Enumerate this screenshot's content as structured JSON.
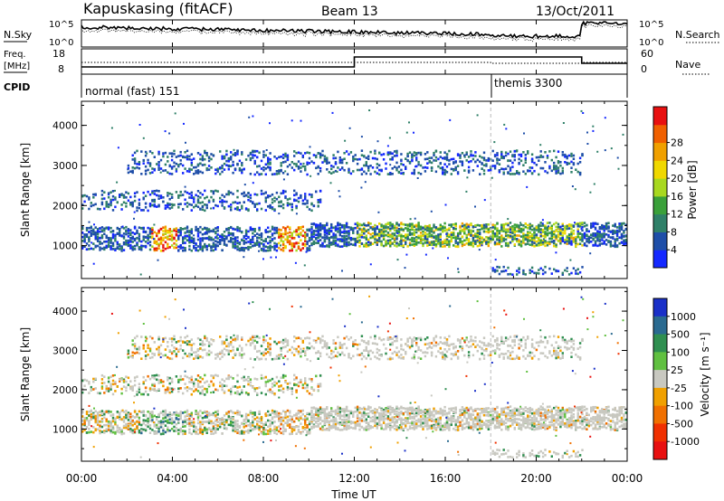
{
  "header": {
    "station": "Kapuskasing (fitACF)",
    "beam": "Beam 13",
    "date": "13/Oct/2011"
  },
  "strips": {
    "nsky": {
      "left_label": "N.Sky",
      "right_label": "N.Search",
      "left_ticks": [
        "10^5",
        "10^0"
      ],
      "right_ticks": [
        "10^5",
        "10^0"
      ]
    },
    "freq": {
      "left_label_1": "Freq.",
      "left_label_2": "[MHz]",
      "right_label": "Nave",
      "left_ticks": [
        "18",
        "8"
      ],
      "right_ticks": [
        "60",
        "0"
      ]
    },
    "cpid": {
      "label": "CPID",
      "modes": [
        {
          "name": "normal (fast) 151",
          "start_hour": 0,
          "end_hour": 18
        },
        {
          "name": "themis 3300",
          "start_hour": 18,
          "end_hour": 24
        }
      ]
    }
  },
  "chart_data": [
    {
      "type": "heatmap",
      "panel": "power",
      "ylabel": "Slant Range [km]",
      "xlabel": "Time UT",
      "x_ticks": [
        "00:00",
        "04:00",
        "08:00",
        "12:00",
        "16:00",
        "20:00",
        "00:00"
      ],
      "xlim_hours": [
        0,
        24
      ],
      "ylim_km": [
        180,
        4600
      ],
      "y_ticks": [
        1000,
        2000,
        3000,
        4000
      ],
      "colorbar_label": "Power [dB]",
      "colorbar_ticks": [
        "4",
        "8",
        "12",
        "16",
        "20",
        "24",
        "28"
      ],
      "colorbar_colors": [
        "#1428ff",
        "#1e4ea8",
        "#2f8068",
        "#3aa03a",
        "#a8d820",
        "#f0d800",
        "#f0a000",
        "#f06000",
        "#e81010"
      ],
      "range_bands": [
        {
          "start_hour": 0,
          "end_hour": 24,
          "center_km": 1200,
          "width_km": 300
        },
        {
          "start_hour": 0,
          "end_hour": 10.5,
          "center_km": 2150,
          "width_km": 250
        },
        {
          "start_hour": 10,
          "end_hour": 24,
          "center_km": 1300,
          "width_km": 250
        },
        {
          "start_hour": 2,
          "end_hour": 22,
          "center_km": 3100,
          "width_km": 300
        },
        {
          "start_hour": 18,
          "end_hour": 22,
          "center_km": 400,
          "width_km": 100
        }
      ]
    },
    {
      "type": "heatmap",
      "panel": "velocity",
      "ylabel": "Slant Range [km]",
      "xlabel": "Time UT",
      "x_ticks": [
        "00:00",
        "04:00",
        "08:00",
        "12:00",
        "16:00",
        "20:00",
        "00:00"
      ],
      "xlim_hours": [
        0,
        24
      ],
      "ylim_km": [
        180,
        4600
      ],
      "y_ticks": [
        1000,
        2000,
        3000,
        4000
      ],
      "colorbar_label": "Velocity [m s⁻¹]",
      "colorbar_ticks": [
        "1000",
        "500",
        "100",
        "25",
        "-25",
        "-100",
        "-500",
        "-1000"
      ],
      "colorbar_colors": [
        "#1a30c8",
        "#2a6a90",
        "#2f8f50",
        "#60c040",
        "#c8c8c0",
        "#f0a000",
        "#f07000",
        "#f03000",
        "#e81010"
      ],
      "ground_scatter_color": "#c0c0b8"
    }
  ],
  "footer": {
    "time_label": "Time UT"
  },
  "colors": {
    "background": "#ffffff",
    "axis": "#000000",
    "ground_scatter": "#c0c0b8"
  }
}
